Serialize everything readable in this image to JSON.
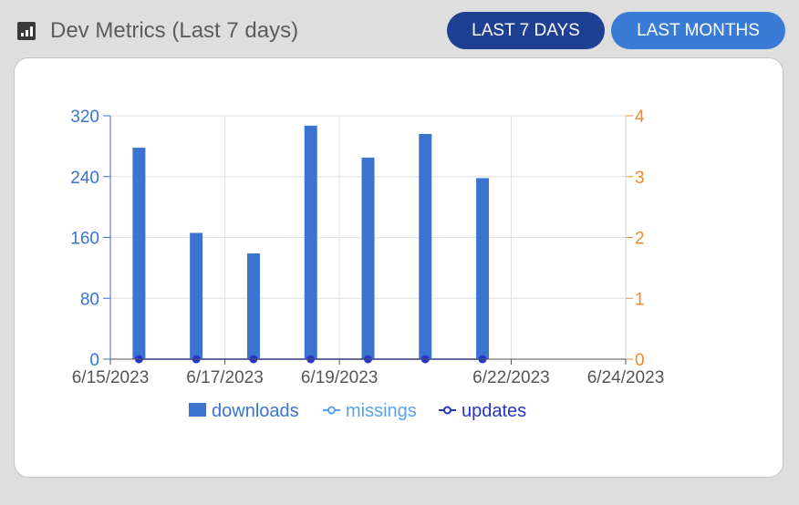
{
  "header": {
    "title": "Dev Metrics (Last 7 days)",
    "title_icon": "bar-chart-icon",
    "buttons": {
      "last_7_days": "LAST 7 DAYS",
      "last_months": "LAST MONTHS"
    }
  },
  "colors": {
    "active_button": "#1f3f93",
    "inactive_button": "#3a7bd5",
    "downloads": "#3a74d0",
    "missings": "#5aa3ea",
    "updates": "#2635c9",
    "left_axis": "#3a74d0",
    "right_axis": "#ee8a2e"
  },
  "chart_data": {
    "type": "bar",
    "x_axis": {
      "type": "date",
      "range": [
        "2023-06-15",
        "2023-06-24"
      ],
      "tick_labels": [
        "6/15/2023",
        "6/17/2023",
        "6/19/2023",
        "6/22/2023",
        "6/24/2023"
      ]
    },
    "y_left": {
      "range": [
        0,
        320
      ],
      "tick_labels": [
        "0",
        "80",
        "160",
        "240",
        "320"
      ]
    },
    "y_right": {
      "range": [
        0,
        4
      ],
      "tick_labels": [
        "0",
        "1",
        "2",
        "3",
        "4"
      ]
    },
    "grid": true,
    "legend_position": "bottom",
    "series": [
      {
        "name": "downloads",
        "type": "bar",
        "axis": "left",
        "x": [
          "2023-06-16",
          "2023-06-17",
          "2023-06-18",
          "2023-06-19",
          "2023-06-20",
          "2023-06-21",
          "2023-06-22"
        ],
        "values": [
          278,
          166,
          139,
          307,
          265,
          296,
          238
        ]
      },
      {
        "name": "missings",
        "type": "line",
        "axis": "right",
        "x": [
          "2023-06-16",
          "2023-06-17",
          "2023-06-18",
          "2023-06-19",
          "2023-06-20",
          "2023-06-21",
          "2023-06-22"
        ],
        "values": [
          0,
          0,
          0,
          0,
          0,
          0,
          0
        ]
      },
      {
        "name": "updates",
        "type": "line",
        "axis": "right",
        "x": [
          "2023-06-16",
          "2023-06-17",
          "2023-06-18",
          "2023-06-19",
          "2023-06-20",
          "2023-06-21",
          "2023-06-22"
        ],
        "values": [
          0,
          0,
          0,
          0,
          0,
          0,
          0
        ]
      }
    ]
  }
}
